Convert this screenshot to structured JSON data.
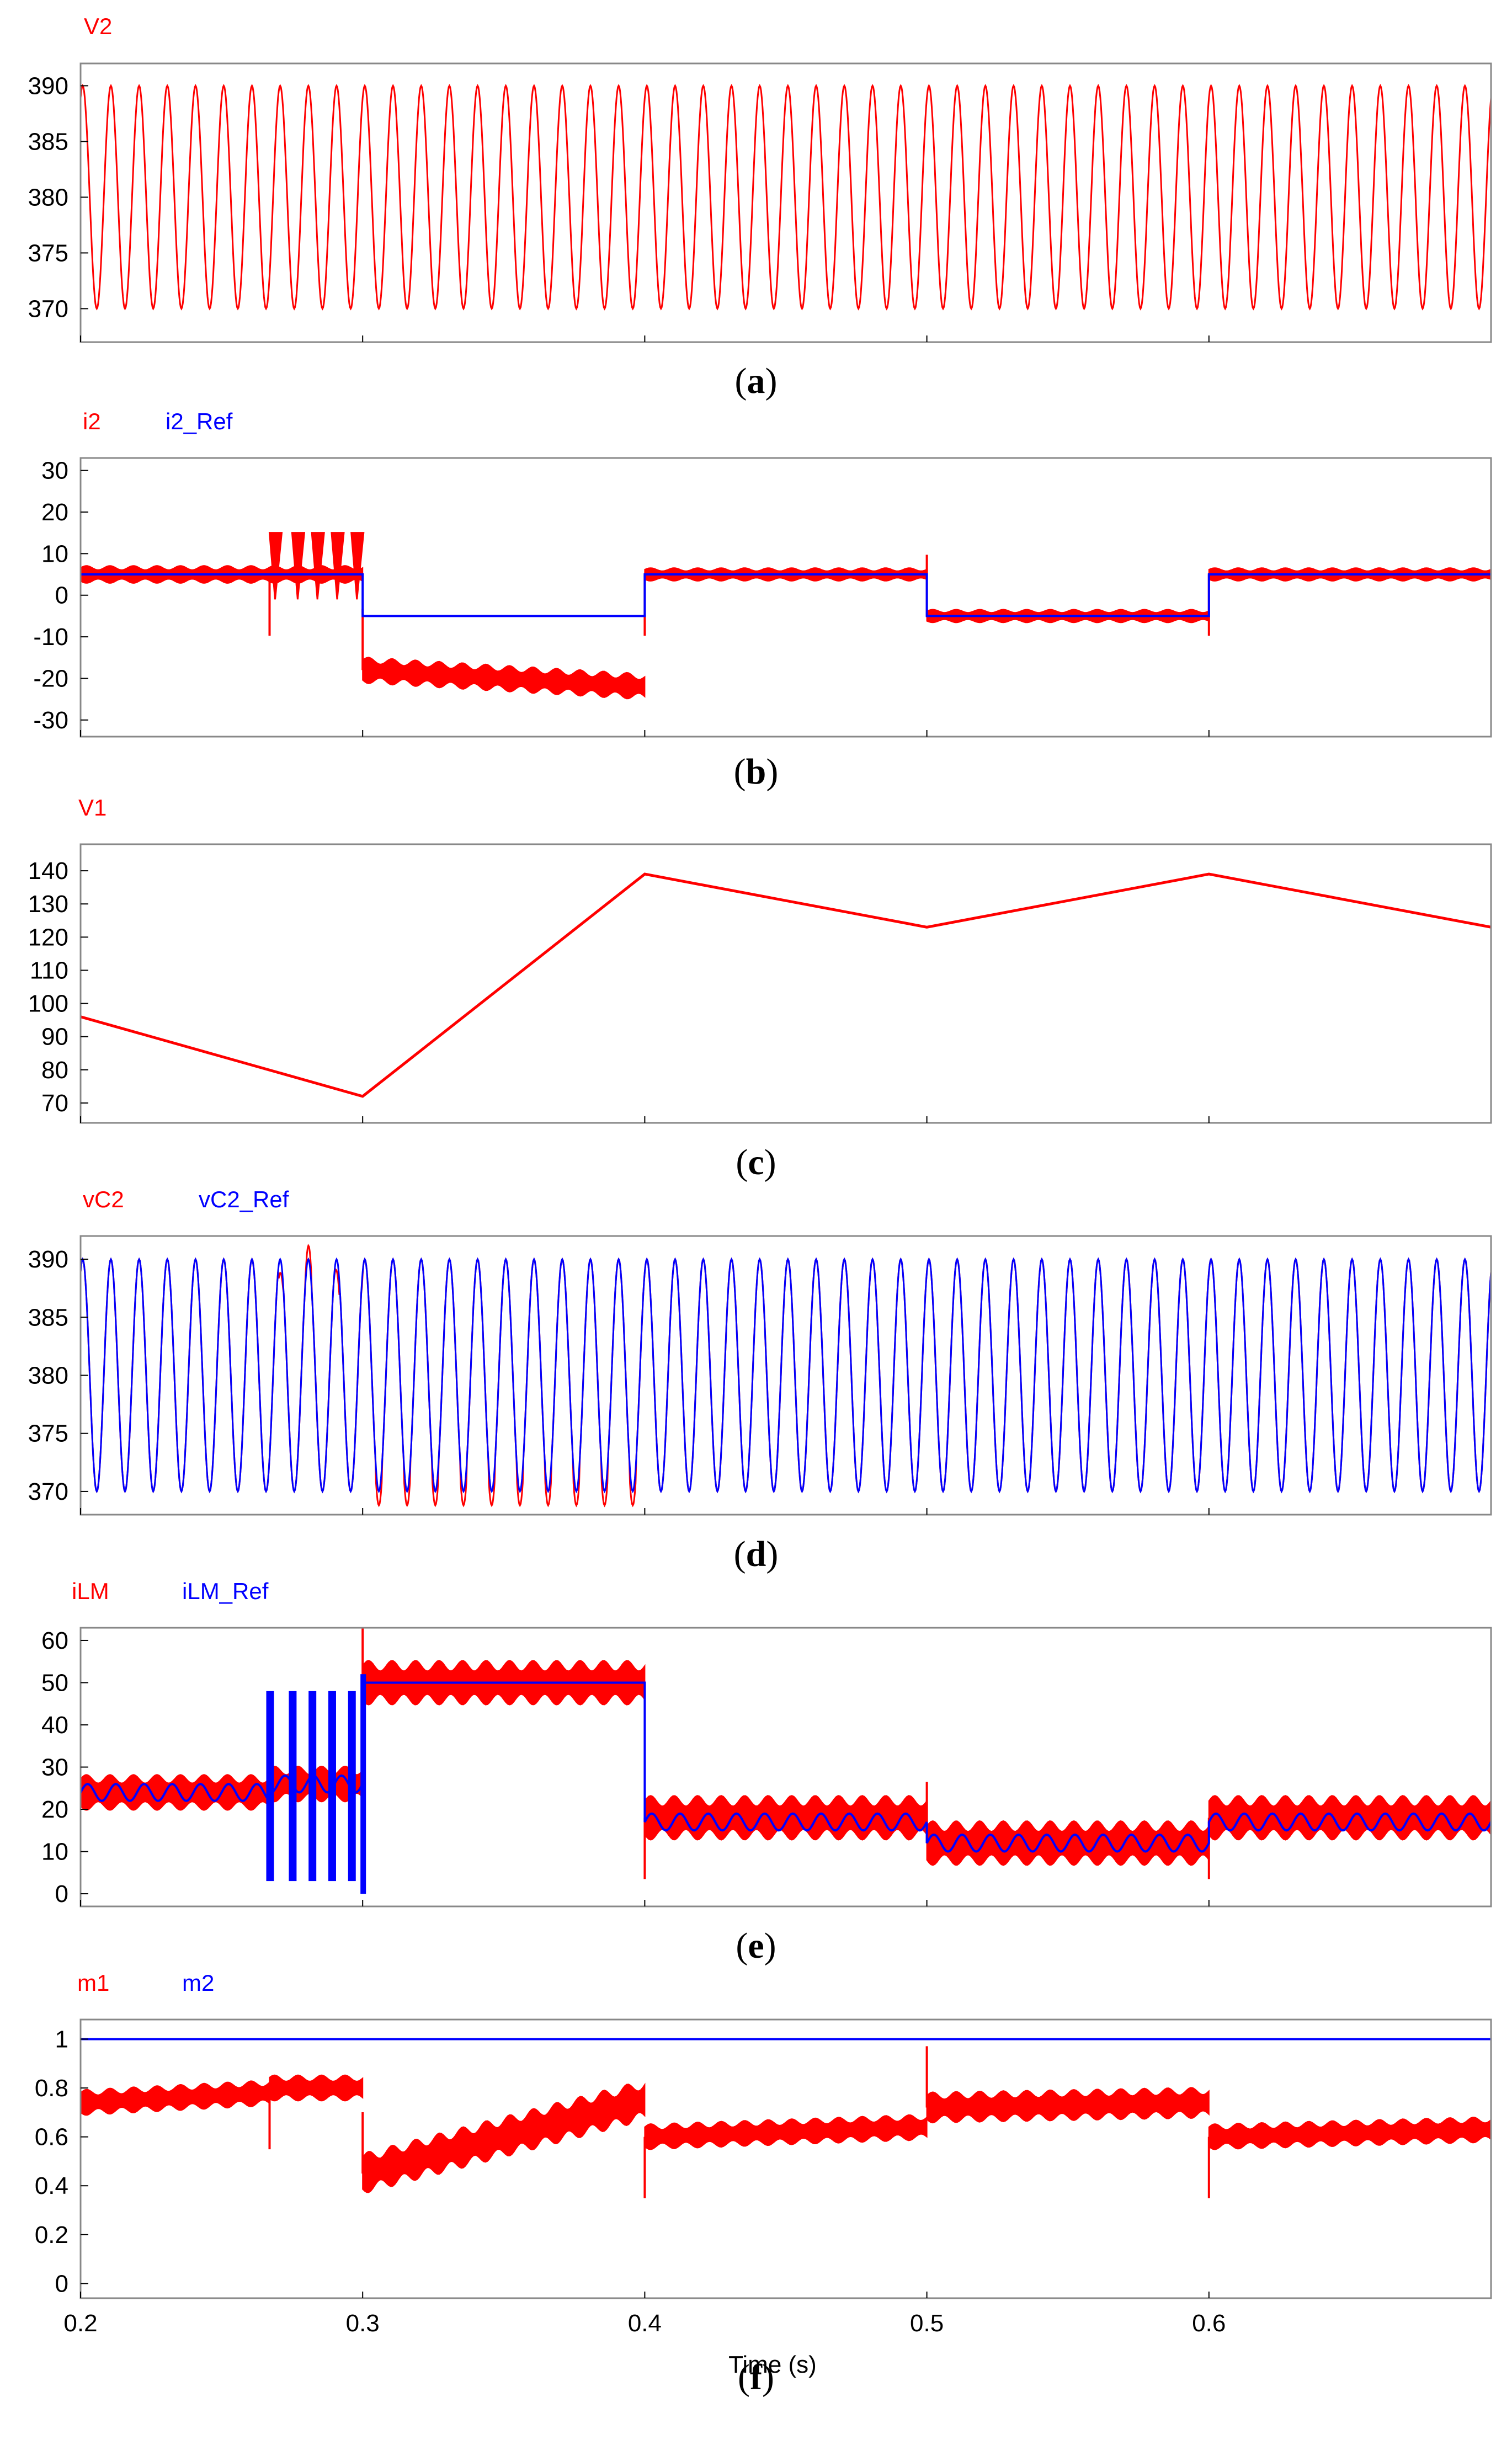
{
  "figure": {
    "xlabel": "Time (s)",
    "x_range": [
      0.2,
      0.7
    ],
    "x_ticks": [
      "0.2",
      "0.3",
      "0.4",
      "0.5",
      "0.6"
    ],
    "x_tick_values": [
      0.2,
      0.3,
      0.4,
      0.5,
      0.6
    ],
    "colors": {
      "red": "#ff0000",
      "blue": "#0000ff",
      "frame": "#888888"
    }
  },
  "chart_data": [
    {
      "type": "line",
      "caption": "a",
      "series": [
        {
          "name": "V2",
          "color": "#ff0000",
          "kind": "sine",
          "offset": 380,
          "amp": 10,
          "cycles_per_0_1s": 10
        }
      ],
      "ylim": [
        367,
        392
      ],
      "yticks": [
        370,
        375,
        380,
        385,
        390
      ],
      "ytick_labels": [
        "370",
        "375",
        "380",
        "385",
        "390"
      ]
    },
    {
      "type": "line",
      "caption": "b",
      "series": [
        {
          "name": "i2",
          "color": "#ff0000",
          "kind": "band",
          "note": "noisy current with ripple",
          "segments": [
            {
              "x": [
                0.2,
                0.267
              ],
              "center": [
                5,
                5
              ],
              "halfwidth": 2
            },
            {
              "x": [
                0.267,
                0.3
              ],
              "center": [
                5,
                5
              ],
              "halfwidth": 2,
              "bursts": [
                [
                  0.267,
                  15,
                  -1
                ],
                [
                  0.275,
                  15,
                  -1
                ],
                [
                  0.282,
                  15,
                  -1
                ],
                [
                  0.289,
                  15,
                  -1
                ],
                [
                  0.296,
                  15,
                  -1
                ]
              ]
            },
            {
              "x": [
                0.3,
                0.4
              ],
              "center": [
                -18,
                -22
              ],
              "halfwidth": 3
            },
            {
              "x": [
                0.4,
                0.5
              ],
              "center": [
                5,
                5
              ],
              "halfwidth": 1.5
            },
            {
              "x": [
                0.5,
                0.6
              ],
              "center": [
                -5,
                -5
              ],
              "halfwidth": 1.5
            },
            {
              "x": [
                0.6,
                0.7
              ],
              "center": [
                5,
                5
              ],
              "halfwidth": 1.5
            }
          ]
        },
        {
          "name": "i2_Ref",
          "color": "#0000ff",
          "kind": "step",
          "points": [
            [
              0.2,
              5
            ],
            [
              0.3,
              5
            ],
            [
              0.3,
              -5
            ],
            [
              0.4,
              -5
            ],
            [
              0.4,
              5
            ],
            [
              0.5,
              5
            ],
            [
              0.5,
              -5
            ],
            [
              0.6,
              -5
            ],
            [
              0.6,
              5
            ],
            [
              0.7,
              5
            ]
          ]
        }
      ],
      "ylim": [
        -34,
        33
      ],
      "yticks": [
        -30,
        -20,
        -10,
        0,
        10,
        20,
        30
      ],
      "ytick_labels": [
        "-30",
        "-20",
        "-10",
        "0",
        "10",
        "20",
        "30"
      ]
    },
    {
      "type": "line",
      "caption": "c",
      "series": [
        {
          "name": "V1",
          "color": "#ff0000",
          "kind": "piecewise",
          "points": [
            [
              0.2,
              96
            ],
            [
              0.3,
              72
            ],
            [
              0.4,
              139
            ],
            [
              0.5,
              123
            ],
            [
              0.6,
              139
            ],
            [
              0.7,
              123
            ]
          ]
        }
      ],
      "ylim": [
        64,
        148
      ],
      "yticks": [
        70,
        80,
        90,
        100,
        110,
        120,
        130,
        140
      ],
      "ytick_labels": [
        "70",
        "80",
        "90",
        "100",
        "110",
        "120",
        "130",
        "140"
      ]
    },
    {
      "type": "line",
      "caption": "d",
      "series": [
        {
          "name": "vC2",
          "color": "#ff0000",
          "kind": "sine",
          "offset": 380,
          "amp": 10,
          "cycles_per_0_1s": 10,
          "note": "overshoot 0.27-0.3 s, extended minima 0.3-0.4 s"
        },
        {
          "name": "vC2_Ref",
          "color": "#0000ff",
          "kind": "sine",
          "offset": 380,
          "amp": 10,
          "cycles_per_0_1s": 10
        }
      ],
      "ylim": [
        368,
        392
      ],
      "yticks": [
        370,
        375,
        380,
        385,
        390
      ],
      "ytick_labels": [
        "370",
        "375",
        "380",
        "385",
        "390"
      ]
    },
    {
      "type": "line",
      "caption": "e",
      "series": [
        {
          "name": "iLM",
          "color": "#ff0000",
          "kind": "band",
          "segments": [
            {
              "x": [
                0.2,
                0.267
              ],
              "center": [
                24,
                24
              ],
              "halfwidth": 4
            },
            {
              "x": [
                0.267,
                0.3
              ],
              "center": [
                26,
                26
              ],
              "halfwidth": 4
            },
            {
              "x": [
                0.3,
                0.4
              ],
              "center": [
                50,
                50
              ],
              "halfwidth": 5
            },
            {
              "x": [
                0.4,
                0.5
              ],
              "center": [
                18,
                18
              ],
              "halfwidth": 5
            },
            {
              "x": [
                0.5,
                0.6
              ],
              "center": [
                12,
                12
              ],
              "halfwidth": 5
            },
            {
              "x": [
                0.6,
                0.7
              ],
              "center": [
                18,
                18
              ],
              "halfwidth": 5
            }
          ]
        },
        {
          "name": "iLM_Ref",
          "color": "#0000ff",
          "kind": "ripple",
          "segments": [
            {
              "x": [
                0.2,
                0.267
              ],
              "center": 24,
              "amp": 2
            },
            {
              "x": [
                0.267,
                0.3
              ],
              "center": 26,
              "amp": 2
            },
            {
              "x": [
                0.3,
                0.4
              ],
              "center": 50,
              "amp": 0
            },
            {
              "x": [
                0.4,
                0.5
              ],
              "center": 17,
              "amp": 2
            },
            {
              "x": [
                0.5,
                0.6
              ],
              "center": 12,
              "amp": 2
            },
            {
              "x": [
                0.6,
                0.7
              ],
              "center": 17,
              "amp": 2
            }
          ]
        }
      ],
      "ylim": [
        -3,
        63
      ],
      "yticks": [
        0,
        10,
        20,
        30,
        40,
        50,
        60
      ],
      "ytick_labels": [
        "0",
        "10",
        "20",
        "30",
        "40",
        "50",
        "60"
      ]
    },
    {
      "type": "line",
      "caption": "f",
      "series": [
        {
          "name": "m1",
          "color": "#ff0000",
          "kind": "band",
          "segments": [
            {
              "x": [
                0.2,
                0.267
              ],
              "center": [
                0.74,
                0.78
              ],
              "halfwidth": 0.05
            },
            {
              "x": [
                0.267,
                0.3
              ],
              "center": [
                0.8,
                0.8
              ],
              "halfwidth": 0.05
            },
            {
              "x": [
                0.3,
                0.4
              ],
              "center": [
                0.45,
                0.75
              ],
              "halfwidth": 0.08
            },
            {
              "x": [
                0.4,
                0.5
              ],
              "center": [
                0.6,
                0.64
              ],
              "halfwidth": 0.05
            },
            {
              "x": [
                0.5,
                0.6
              ],
              "center": [
                0.72,
                0.74
              ],
              "halfwidth": 0.06
            },
            {
              "x": [
                0.6,
                0.7
              ],
              "center": [
                0.6,
                0.63
              ],
              "halfwidth": 0.05
            }
          ]
        },
        {
          "name": "m2",
          "color": "#0000ff",
          "kind": "constant",
          "value": 1
        }
      ],
      "ylim": [
        -0.06,
        1.08
      ],
      "yticks": [
        0,
        0.2,
        0.4,
        0.6,
        0.8,
        1
      ],
      "ytick_labels": [
        "0",
        "0.2",
        "0.4",
        "0.6",
        "0.8",
        "1"
      ]
    }
  ]
}
